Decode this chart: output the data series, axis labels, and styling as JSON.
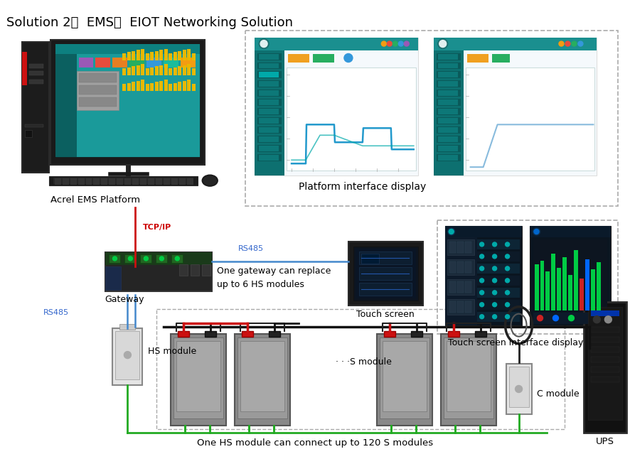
{
  "title": "Solution 2：  EMS，  EIOT Networking Solution",
  "bg_color": "#ffffff",
  "title_color": "#000000",
  "title_fontsize": 13,
  "labels": {
    "acrel_ems": "Acrel EMS Platform",
    "platform_interface": "Platform interface display",
    "tcp_ip": "TCP/IP",
    "rs485_1": "RS485",
    "rs485_2": "RS485",
    "gateway": "Gateway",
    "gateway_note": "One gateway can replace\nup to 6 HS modules",
    "touch_screen": "Touch screen",
    "touch_screen_interface": "Touch screen interface display",
    "hs_module": "HS module",
    "s_module": "· · ·S module",
    "c_module": "C module",
    "ups": "UPS",
    "bottom_note": "One HS module can connect up to 120 S modules"
  },
  "label_colors": {
    "tcp_ip": "#cc0000",
    "rs485_1": "#3366cc",
    "rs485_2": "#3366cc",
    "gateway": "#000000",
    "acrel_ems": "#000000",
    "platform_interface": "#000000",
    "touch_screen": "#000000",
    "touch_screen_interface": "#000000",
    "hs_module": "#000000",
    "s_module": "#000000",
    "c_module": "#000000",
    "ups": "#000000",
    "bottom_note": "#000000",
    "gateway_note": "#000000"
  }
}
